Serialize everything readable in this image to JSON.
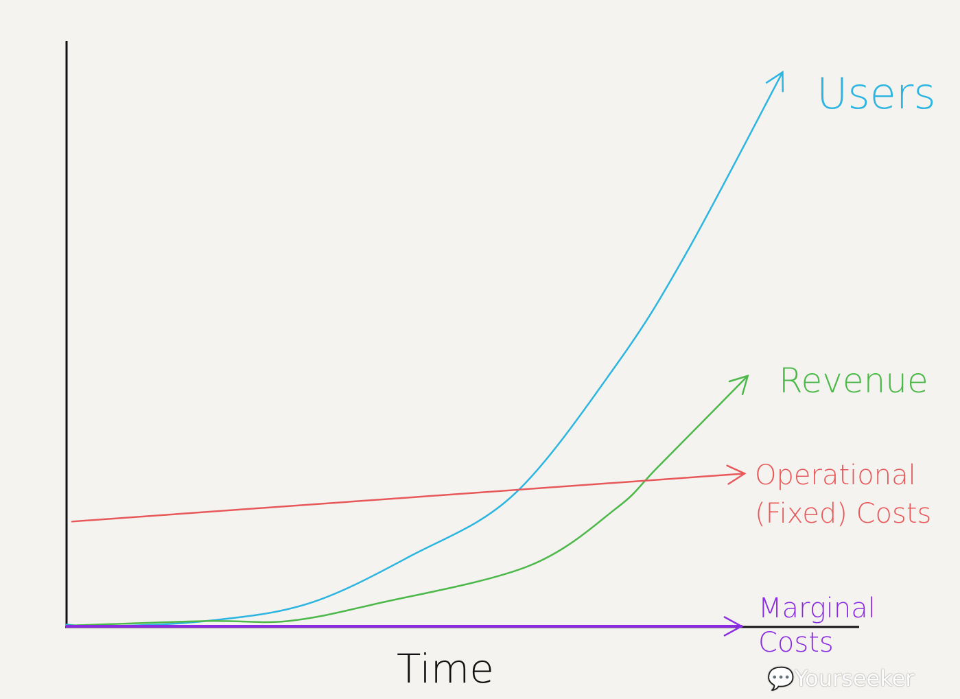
{
  "chart_data": {
    "type": "line",
    "title": "",
    "xlabel": "Time",
    "ylabel": "",
    "xlim": [
      0,
      10
    ],
    "ylim": [
      0,
      10
    ],
    "grid": false,
    "legend": "inline labels at line ends (right)",
    "series": [
      {
        "name": "Users",
        "color": "#2bb5e0",
        "x": [
          0,
          0.46,
          1.76,
          3.06,
          4.36,
          5.66,
          6.96,
          7.83,
          9.05
        ],
        "y": [
          0.03,
          0,
          0.09,
          0.39,
          1.21,
          2.26,
          4.49,
          6.37,
          9.47
        ]
      },
      {
        "name": "Revenue",
        "color": "#4cb84a",
        "x": [
          0,
          1.76,
          2.8,
          3.93,
          5.84,
          6.96,
          7.48,
          8.61
        ],
        "y": [
          0.01,
          0.09,
          0.09,
          0.39,
          1.03,
          2.03,
          2.73,
          4.28
        ]
      },
      {
        "name": "Operational (Fixed) Costs",
        "name_lines": [
          "Operational",
          "(Fixed) Costs"
        ],
        "color": "#e8585a",
        "x": [
          0.07,
          8.57
        ],
        "y": [
          1.79,
          2.61
        ]
      },
      {
        "name": "Marginal Costs",
        "name_lines": [
          "Marginal",
          "Costs"
        ],
        "color": "#8a2be2",
        "x": [
          0,
          8.53
        ],
        "y": [
          0,
          0
        ]
      }
    ]
  },
  "watermark": "Yourseeker"
}
